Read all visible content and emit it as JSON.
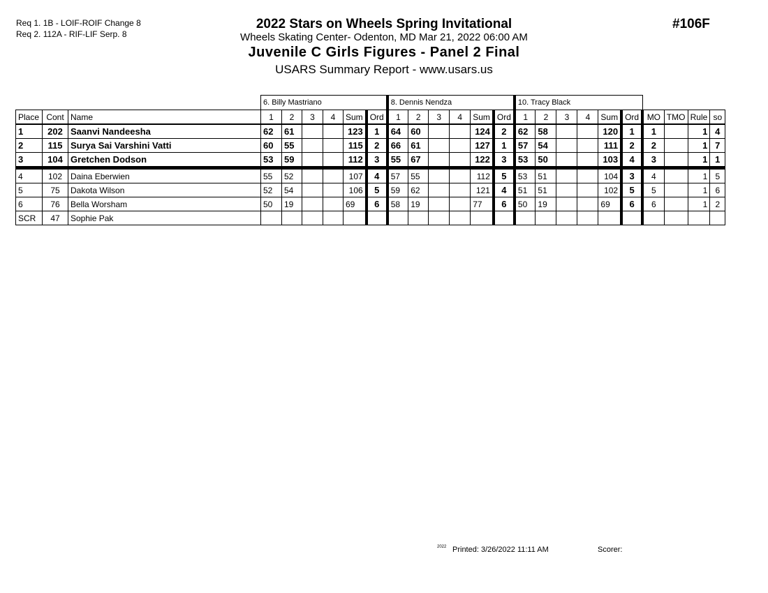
{
  "requirements": [
    "Req  1.  1B - LOIF-ROIF Change 8",
    "Req  2.  112A - RIF-LIF Serp. 8"
  ],
  "title": "2022 Stars on Wheels Spring Invitational",
  "subtitle": "Wheels Skating Center- Odenton, MD  Mar 21, 2022  06:00 AM",
  "event": "Juvenile C Girls Figures - Panel 2 Final",
  "report": "USARS Summary Report - www.usars.us",
  "event_number": "#106F",
  "judges": [
    "6.  Billy Mastriano",
    "8.  Dennis Nendza",
    "10.  Tracy Black"
  ],
  "columns": {
    "place": "Place",
    "cont": "Cont",
    "name": "Name",
    "judge_cols": [
      "1",
      "2",
      "3",
      "4",
      "Sum",
      "Ord"
    ],
    "extra": [
      "MO",
      "TMO",
      "Rule",
      "so"
    ]
  },
  "rows": [
    {
      "place": "1",
      "cont": "202",
      "name": "Saanvi Nandeesha",
      "bold": true,
      "j": [
        [
          "62",
          "61",
          "",
          "",
          "123",
          "1"
        ],
        [
          "64",
          "60",
          "",
          "",
          "124",
          "2"
        ],
        [
          "62",
          "58",
          "",
          "",
          "120",
          "1"
        ]
      ],
      "mo": "1",
      "tmo": "",
      "rule": "1",
      "so": "4"
    },
    {
      "place": "2",
      "cont": "115",
      "name": "Surya Sai Varshini Vatti",
      "bold": true,
      "j": [
        [
          "60",
          "55",
          "",
          "",
          "115",
          "2"
        ],
        [
          "66",
          "61",
          "",
          "",
          "127",
          "1"
        ],
        [
          "57",
          "54",
          "",
          "",
          "111",
          "2"
        ]
      ],
      "mo": "2",
      "tmo": "",
      "rule": "1",
      "so": "7"
    },
    {
      "place": "3",
      "cont": "104",
      "name": "Gretchen Dodson",
      "bold": true,
      "j": [
        [
          "53",
          "59",
          "",
          "",
          "112",
          "3"
        ],
        [
          "55",
          "67",
          "",
          "",
          "122",
          "3"
        ],
        [
          "53",
          "50",
          "",
          "",
          "103",
          "4"
        ]
      ],
      "mo": "3",
      "tmo": "",
      "rule": "1",
      "so": "1"
    },
    {
      "place": "4",
      "cont": "102",
      "name": "Daina Eberwien",
      "bold": false,
      "j": [
        [
          "55",
          "52",
          "",
          "",
          "107",
          "4"
        ],
        [
          "57",
          "55",
          "",
          "",
          "112",
          "5"
        ],
        [
          "53",
          "51",
          "",
          "",
          "104",
          "3"
        ]
      ],
      "mo": "4",
      "tmo": "",
      "rule": "1",
      "so": "5"
    },
    {
      "place": "5",
      "cont": "75",
      "name": "Dakota Wilson",
      "bold": false,
      "j": [
        [
          "52",
          "54",
          "",
          "",
          "106",
          "5"
        ],
        [
          "59",
          "62",
          "",
          "",
          "121",
          "4"
        ],
        [
          "51",
          "51",
          "",
          "",
          "102",
          "5"
        ]
      ],
      "mo": "5",
      "tmo": "",
      "rule": "1",
      "so": "6"
    },
    {
      "place": "6",
      "cont": "76",
      "name": "Bella Worsham",
      "bold": false,
      "j": [
        [
          "50",
          "19",
          "",
          "",
          "69",
          "6"
        ],
        [
          "58",
          "19",
          "",
          "",
          "77",
          "6"
        ],
        [
          "50",
          "19",
          "",
          "",
          "69",
          "6"
        ]
      ],
      "mo": "6",
      "tmo": "",
      "rule": "1",
      "so": "2"
    },
    {
      "place": "SCR",
      "cont": "47",
      "name": "Sophie Pak",
      "bold": false,
      "j": [
        [
          "",
          "",
          "",
          "",
          "",
          ""
        ],
        [
          "",
          "",
          "",
          "",
          "",
          ""
        ],
        [
          "",
          "",
          "",
          "",
          "",
          ""
        ]
      ],
      "mo": "",
      "tmo": "",
      "rule": "",
      "so": ""
    }
  ],
  "footer": {
    "tiny": "2022",
    "printed": "Printed:  3/26/2022  11:11 AM",
    "scorer": "Scorer:"
  }
}
